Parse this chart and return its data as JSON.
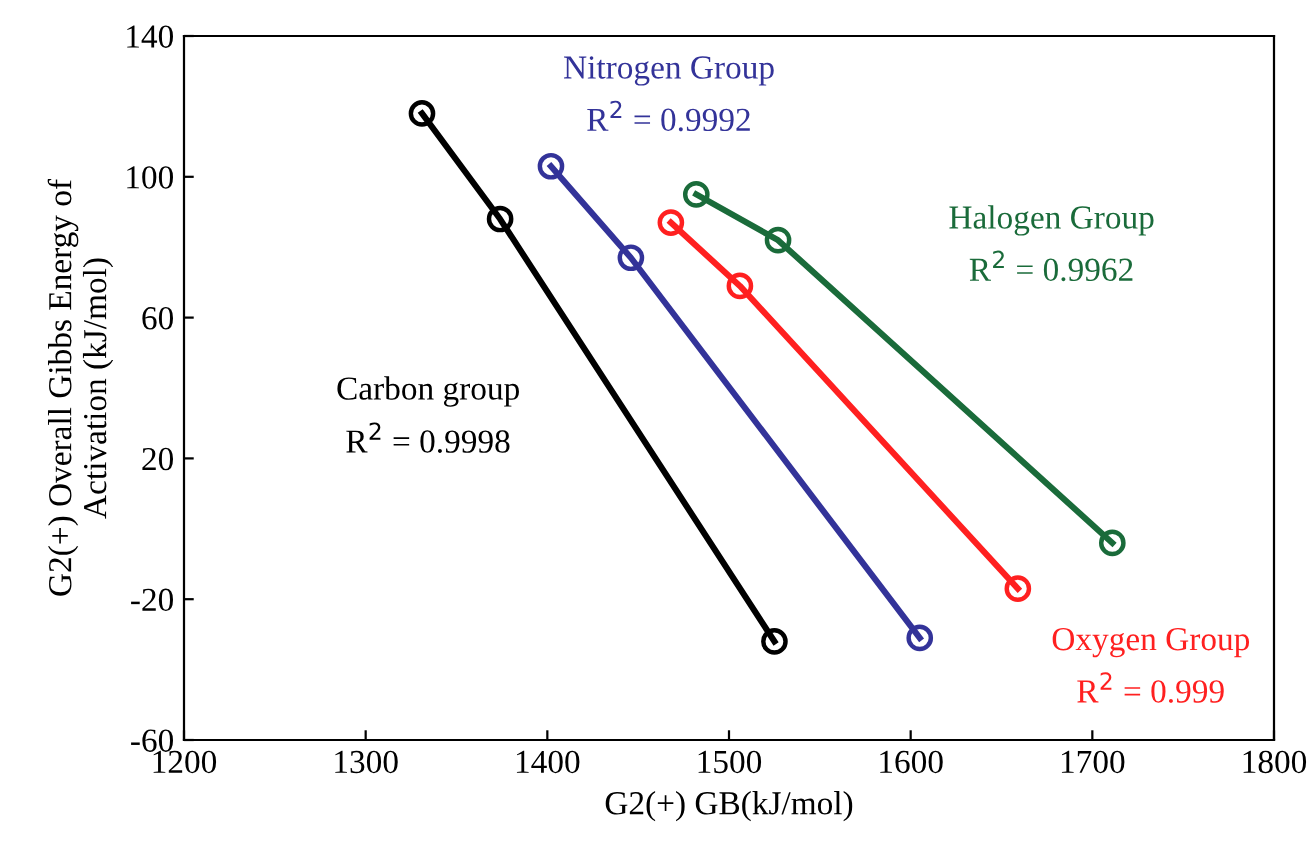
{
  "chart_data": {
    "type": "line",
    "xlabel": "G2(+) GB(kJ/mol)",
    "ylabel": "G2(+) Overall Gibbs Energy of\nActivation (kJ/mol)",
    "series": [
      {
        "name": "Carbon group",
        "color": "#000000",
        "x": [
          1331,
          1374,
          1525
        ],
        "values": [
          118,
          88,
          -32
        ]
      },
      {
        "name": "Nitrogen Group",
        "color": "#333399",
        "x": [
          1402,
          1446,
          1605
        ],
        "values": [
          103,
          77,
          -31
        ]
      },
      {
        "name": "Oxygen Group",
        "color": "#ff2020",
        "x": [
          1468,
          1506,
          1659
        ],
        "values": [
          87,
          69,
          -17
        ]
      },
      {
        "name": "Halogen Group",
        "color": "#1a6b3a",
        "x": [
          1482,
          1527,
          1711
        ],
        "values": [
          95,
          82,
          -4
        ]
      }
    ],
    "annotations": [
      "R$^{2}$ = 0.9998",
      "R$^{2}$ = 0.9992",
      "R$^{2}$ = 0.999",
      "R$^{2}$ = 0.9962"
    ],
    "marker": "circle",
    "line_style": "solid",
    "grid": false,
    "legend": false,
    "xlim": [
      1200,
      1800
    ],
    "xticks": [
      1200,
      1300,
      1400,
      1500,
      1600,
      1700,
      1800
    ],
    "ylim": [
      -60,
      140
    ],
    "yticks": [
      -60,
      -20,
      20,
      60,
      100,
      140
    ]
  }
}
